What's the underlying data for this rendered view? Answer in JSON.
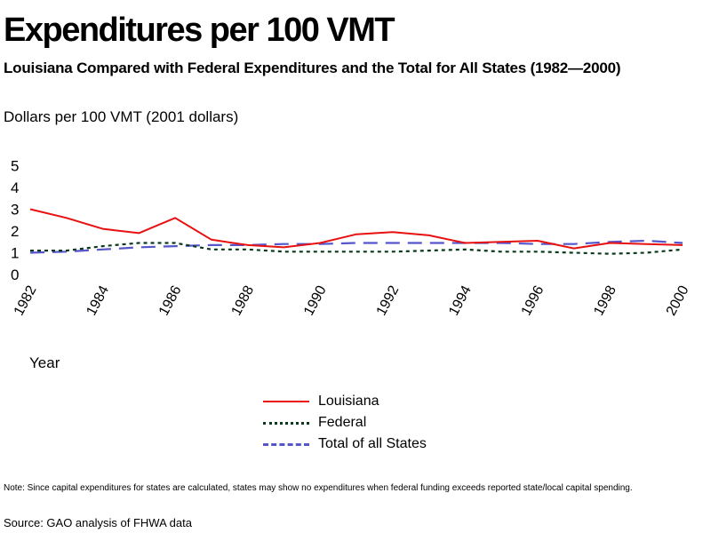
{
  "title": "Expenditures per 100 VMT",
  "subtitle": "Louisiana Compared with Federal Expenditures and the Total for All States (1982—2000)",
  "note": "Note: Since capital expenditures for states are calculated, states may show no expenditures when federal funding exceeds reported state/local capital spending.",
  "source": "Source: GAO analysis of FHWA data",
  "chart_data": {
    "type": "line",
    "ylabel": "Dollars per 100 VMT (2001 dollars)",
    "xlabel": "Year",
    "ylim": [
      0,
      5
    ],
    "yticks": [
      "0",
      "1",
      "2",
      "3",
      "4",
      "5"
    ],
    "x": [
      1982,
      1983,
      1984,
      1985,
      1986,
      1987,
      1988,
      1989,
      1990,
      1991,
      1992,
      1993,
      1994,
      1995,
      1996,
      1997,
      1998,
      1999,
      2000
    ],
    "xticks": [
      "1982",
      "1984",
      "1986",
      "1988",
      "1990",
      "1992",
      "1994",
      "1996",
      "1998",
      "2000"
    ],
    "grid": false,
    "legend_position": "bottom-center",
    "series": [
      {
        "name": "Louisiana",
        "color": "#e81010",
        "style": "solid",
        "values": [
          3.0,
          2.6,
          2.1,
          1.9,
          2.6,
          1.6,
          1.35,
          1.25,
          1.45,
          1.85,
          1.95,
          1.8,
          1.45,
          1.5,
          1.55,
          1.2,
          1.45,
          1.4,
          1.35
        ]
      },
      {
        "name": "Federal",
        "color": "#0a3a1e",
        "style": "dotted",
        "values": [
          1.1,
          1.1,
          1.3,
          1.45,
          1.45,
          1.15,
          1.15,
          1.05,
          1.05,
          1.05,
          1.05,
          1.1,
          1.15,
          1.05,
          1.05,
          1.0,
          0.95,
          1.0,
          1.15
        ]
      },
      {
        "name": "Total of all States",
        "color": "#5555cc",
        "style": "dashed",
        "values": [
          1.0,
          1.05,
          1.15,
          1.25,
          1.3,
          1.35,
          1.35,
          1.4,
          1.4,
          1.45,
          1.45,
          1.45,
          1.45,
          1.45,
          1.4,
          1.4,
          1.5,
          1.55,
          1.45
        ]
      }
    ]
  }
}
